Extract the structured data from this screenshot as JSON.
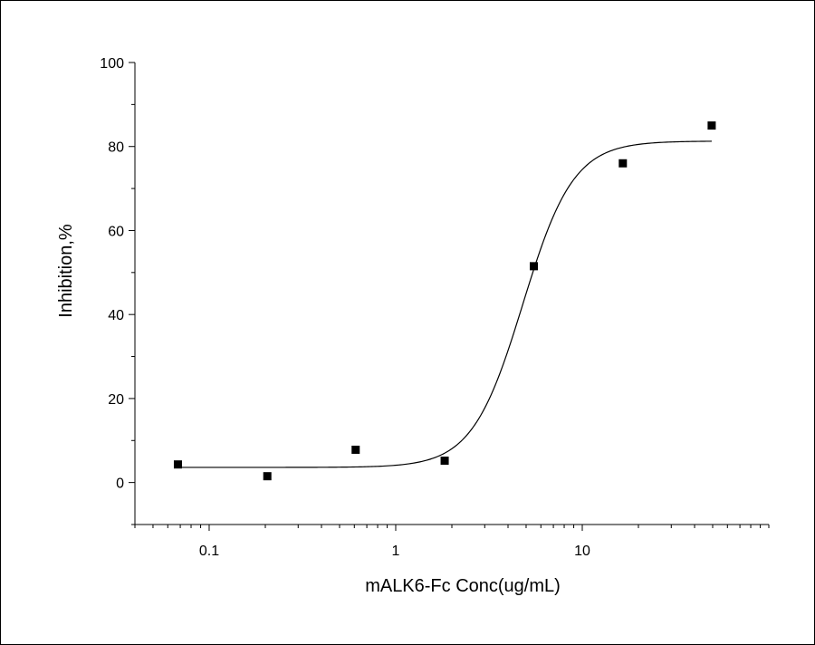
{
  "chart_data": {
    "type": "scatter",
    "xlabel": "mALK6-Fc  Conc(ug/mL)",
    "ylabel": "Inhibition,%",
    "xscale": "log",
    "xlim": [
      0.04,
      100
    ],
    "ylim": [
      -10,
      100
    ],
    "xticks": [
      0.1,
      1,
      10
    ],
    "xtick_labels": [
      "0.1",
      "1",
      "10"
    ],
    "yticks": [
      0,
      20,
      40,
      60,
      80,
      100
    ],
    "ytick_labels": [
      "0",
      "20",
      "40",
      "60",
      "80",
      "100"
    ],
    "grid": false,
    "legend": "none",
    "marker_color": "#000000",
    "line_color": "#000000",
    "series": [
      {
        "kind": "points",
        "marker": "square",
        "x": [
          0.068,
          0.205,
          0.61,
          1.83,
          5.5,
          16.5,
          49.4
        ],
        "y": [
          4.3,
          1.5,
          7.8,
          5.2,
          51.5,
          76.0,
          85.0
        ]
      },
      {
        "kind": "fit-curve",
        "model": "4PL",
        "bottom": 3.6,
        "top": 81.3,
        "ec50": 4.8,
        "hill": 3.2,
        "x_range": [
          0.068,
          49.4
        ]
      }
    ]
  }
}
